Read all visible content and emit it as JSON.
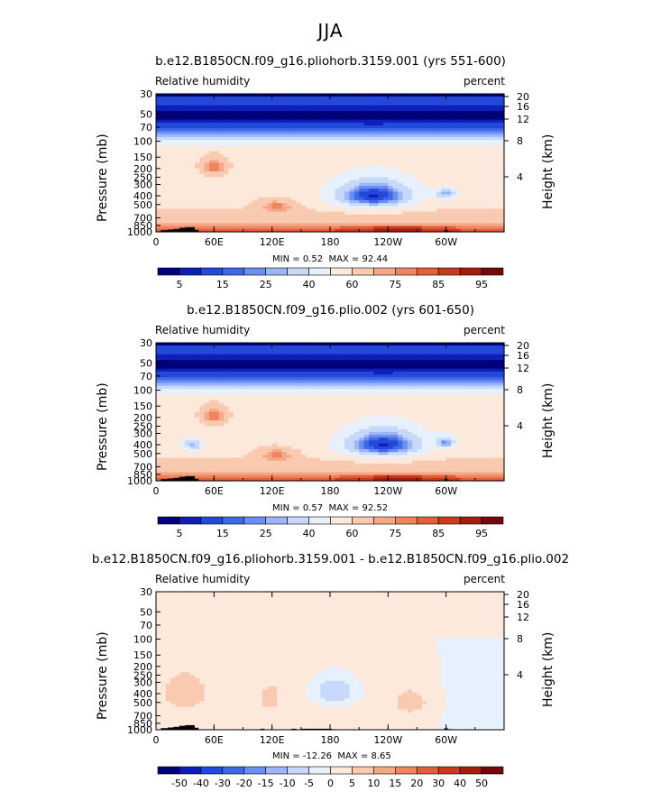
{
  "page": {
    "title": "JJA"
  },
  "colors": {
    "abs_scale": [
      "#00007a",
      "#0e1fb8",
      "#2448d8",
      "#3e6ae8",
      "#6b8ef2",
      "#9cb6f7",
      "#c7d9fb",
      "#e7f0fd",
      "#fde8dc",
      "#f9c9b0",
      "#f5a888",
      "#ef845f",
      "#e25f3a",
      "#cc3a1e",
      "#a51c0f",
      "#750808"
    ],
    "diff_scale": [
      "#00007a",
      "#0e1fb8",
      "#2448d8",
      "#3e6ae8",
      "#6b8ef2",
      "#9cb6f7",
      "#c7d9fb",
      "#e7f0fd",
      "#fde8dc",
      "#f9c9b0",
      "#f5a888",
      "#ef845f",
      "#e25f3a",
      "#cc3a1e",
      "#a51c0f",
      "#750808"
    ],
    "terrain": "#000000"
  },
  "chart_data": [
    {
      "type": "heatmap",
      "title": "b.e12.B1850CN.f09_g16.pliohorb.3159.001 (yrs 551-600)",
      "variable": "Relative humidity",
      "units": "percent",
      "xlabel": "",
      "ylabel": "Pressure (mb)",
      "ylabel_right": "Height (km)",
      "x_ticks": [
        "0",
        "60E",
        "120E",
        "180",
        "120W",
        "60W"
      ],
      "xlim": [
        0,
        360
      ],
      "y_ticks": [
        "30",
        "50",
        "70",
        "100",
        "150",
        "200",
        "250",
        "300",
        "400",
        "500",
        "700",
        "850",
        "1000"
      ],
      "ylim": [
        1000,
        30
      ],
      "height_ticks": [
        "20",
        "16",
        "12",
        "8",
        "4"
      ],
      "min_label": "MIN =",
      "min": "0.52",
      "max_label": "MAX =",
      "max": "92.44",
      "colorbar_labels": [
        "5",
        "15",
        "25",
        "40",
        "60",
        "75",
        "85",
        "95"
      ],
      "colorbar": "abs"
    },
    {
      "type": "heatmap",
      "title": "b.e12.B1850CN.f09_g16.plio.002 (yrs 601-650)",
      "variable": "Relative humidity",
      "units": "percent",
      "xlabel": "",
      "ylabel": "Pressure (mb)",
      "ylabel_right": "Height (km)",
      "x_ticks": [
        "0",
        "60E",
        "120E",
        "180",
        "120W",
        "60W"
      ],
      "xlim": [
        0,
        360
      ],
      "y_ticks": [
        "30",
        "50",
        "70",
        "100",
        "150",
        "200",
        "250",
        "300",
        "400",
        "500",
        "700",
        "850",
        "1000"
      ],
      "ylim": [
        1000,
        30
      ],
      "height_ticks": [
        "20",
        "16",
        "12",
        "8",
        "4"
      ],
      "min_label": "MIN =",
      "min": "0.57",
      "max_label": "MAX =",
      "max": "92.52",
      "colorbar_labels": [
        "5",
        "15",
        "25",
        "40",
        "60",
        "75",
        "85",
        "95"
      ],
      "colorbar": "abs"
    },
    {
      "type": "heatmap",
      "title": "b.e12.B1850CN.f09_g16.pliohorb.3159.001 - b.e12.B1850CN.f09_g16.plio.002",
      "variable": "Relative humidity",
      "units": "percent",
      "xlabel": "",
      "ylabel": "Pressure (mb)",
      "ylabel_right": "Height (km)",
      "x_ticks": [
        "0",
        "60E",
        "120E",
        "180",
        "120W",
        "60W"
      ],
      "xlim": [
        0,
        360
      ],
      "y_ticks": [
        "30",
        "50",
        "70",
        "100",
        "150",
        "200",
        "250",
        "300",
        "400",
        "500",
        "700",
        "850",
        "1000"
      ],
      "ylim": [
        1000,
        30
      ],
      "height_ticks": [
        "20",
        "16",
        "12",
        "8",
        "4"
      ],
      "min_label": "MIN =",
      "min": "-12.26",
      "max_label": "MAX =",
      "max": "8.65",
      "colorbar_labels": [
        "-50",
        "-40",
        "-30",
        "-20",
        "-15",
        "-10",
        "-5",
        "0",
        "5",
        "10",
        "15",
        "20",
        "30",
        "40",
        "50"
      ],
      "colorbar": "diff"
    }
  ]
}
